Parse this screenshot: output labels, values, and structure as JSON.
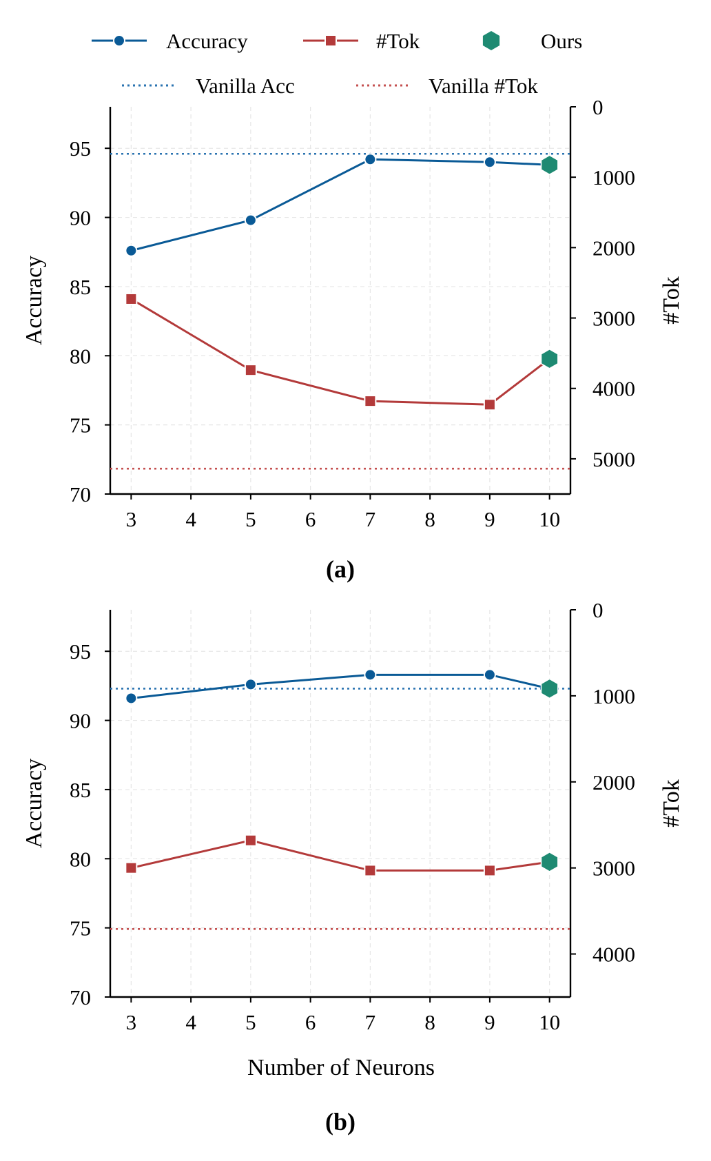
{
  "colors": {
    "accuracy": "#0a5a96",
    "tok": "#b33a3a",
    "ours": "#1e8a72",
    "vanilla_acc": "#2a73b0",
    "vanilla_tok": "#c45050"
  },
  "legend": {
    "accuracy": "Accuracy",
    "tok": "#Tok",
    "ours": "Ours",
    "vanilla_acc": "Vanilla Acc",
    "vanilla_tok": "Vanilla #Tok"
  },
  "xlabel": "Number of Neurons",
  "chart_data": [
    {
      "type": "line",
      "panel_label": "(a)",
      "x": [
        3,
        5,
        7,
        9,
        10
      ],
      "x_ticks": [
        3,
        4,
        5,
        6,
        7,
        8,
        9,
        10
      ],
      "xlim": [
        2.65,
        10.35
      ],
      "ylabel": "Accuracy",
      "ylim": [
        70,
        98
      ],
      "y_ticks": [
        70,
        75,
        80,
        85,
        90,
        95
      ],
      "y2label": "#Tok",
      "y2lim": [
        0,
        5500
      ],
      "y2_ticks": [
        0,
        1000,
        2000,
        3000,
        4000,
        5000
      ],
      "y2_inverted": true,
      "series": [
        {
          "name": "Accuracy",
          "axis": "left",
          "values": [
            87.6,
            89.8,
            94.2,
            94.0,
            93.8
          ]
        },
        {
          "name": "#Tok",
          "axis": "right",
          "values": [
            2730,
            3740,
            4180,
            4230,
            3580
          ]
        }
      ],
      "ours": {
        "x": 10,
        "accuracy": 93.8,
        "tok": 3580
      },
      "vanilla_acc": 94.6,
      "vanilla_tok": 5140
    },
    {
      "type": "line",
      "panel_label": "(b)",
      "x": [
        3,
        5,
        7,
        9,
        10
      ],
      "x_ticks": [
        3,
        4,
        5,
        6,
        7,
        8,
        9,
        10
      ],
      "xlim": [
        2.65,
        10.35
      ],
      "ylabel": "Accuracy",
      "ylim": [
        70,
        98
      ],
      "y_ticks": [
        70,
        75,
        80,
        85,
        90,
        95
      ],
      "y2label": "#Tok",
      "y2lim": [
        0,
        4500
      ],
      "y2_ticks": [
        0,
        1000,
        2000,
        3000,
        4000
      ],
      "y2_inverted": true,
      "series": [
        {
          "name": "Accuracy",
          "axis": "left",
          "values": [
            91.6,
            92.6,
            93.3,
            93.3,
            92.3
          ]
        },
        {
          "name": "#Tok",
          "axis": "right",
          "values": [
            3000,
            2680,
            3030,
            3030,
            2930
          ]
        }
      ],
      "ours": {
        "x": 10,
        "accuracy": 92.3,
        "tok": 2930
      },
      "vanilla_acc": 92.3,
      "vanilla_tok": 3710
    }
  ]
}
